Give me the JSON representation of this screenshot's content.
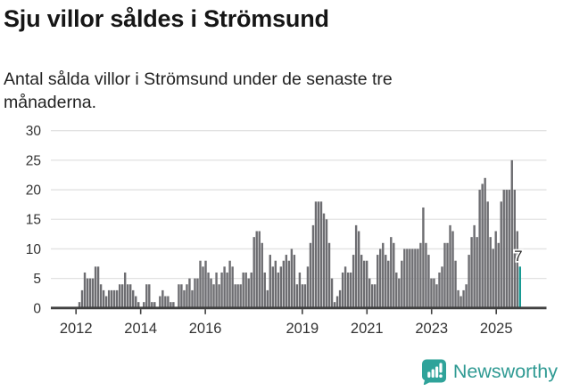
{
  "header": {
    "title": "Sju villor såldes i Strömsund",
    "subtitle_line1": "Antal sålda villor i Strömsund under de senaste tre",
    "subtitle_line2": "månaderna."
  },
  "chart_data": {
    "type": "bar",
    "title": "Sju villor såldes i Strömsund",
    "xlabel": "",
    "ylabel": "",
    "ylim": [
      0,
      30
    ],
    "grid": true,
    "start_month": "2012-01",
    "end_month": "2025-09",
    "y_ticks": [
      0,
      5,
      10,
      15,
      20,
      25,
      30
    ],
    "x_ticks": [
      2012,
      2014,
      2016,
      2019,
      2021,
      2023,
      2025
    ],
    "values": [
      1,
      3,
      6,
      5,
      5,
      5,
      7,
      7,
      4,
      3,
      2,
      3,
      3,
      3,
      3,
      4,
      4,
      6,
      4,
      4,
      3,
      2,
      1,
      0,
      1,
      4,
      4,
      1,
      1,
      0,
      2,
      3,
      2,
      2,
      1,
      1,
      0,
      4,
      4,
      3,
      4,
      5,
      3,
      5,
      5,
      8,
      7,
      8,
      6,
      5,
      4,
      6,
      4,
      6,
      7,
      6,
      8,
      7,
      4,
      4,
      4,
      6,
      6,
      5,
      6,
      12,
      13,
      13,
      11,
      6,
      3,
      9,
      7,
      8,
      6,
      7,
      8,
      9,
      8,
      10,
      9,
      4,
      6,
      4,
      4,
      7,
      11,
      14,
      18,
      18,
      18,
      16,
      15,
      11,
      5,
      1,
      2,
      3,
      6,
      7,
      6,
      6,
      9,
      14,
      13,
      9,
      8,
      8,
      5,
      4,
      4,
      9,
      10,
      11,
      9,
      8,
      12,
      11,
      6,
      5,
      8,
      10,
      10,
      10,
      10,
      10,
      10,
      11,
      17,
      11,
      9,
      5,
      5,
      4,
      6,
      7,
      11,
      11,
      14,
      13,
      8,
      3,
      2,
      3,
      4,
      9,
      12,
      14,
      12,
      20,
      21,
      22,
      18,
      12,
      10,
      13,
      11,
      18,
      20,
      20,
      20,
      25,
      20,
      13,
      7
    ],
    "highlight_last": true,
    "last_value_label": "7",
    "colors": {
      "bar": "#6d6d71",
      "highlight": "#189a93",
      "grid": "#e2e2e2",
      "axis": "#404040",
      "tick_label": "#333333"
    }
  },
  "annotation": {
    "value": "7"
  },
  "footer": {
    "brand": "Newsworthy",
    "brand_color": "#2f9a93",
    "icon": "newsworthy-bubble-barchart-icon",
    "icon_color": "#2fa39a"
  }
}
